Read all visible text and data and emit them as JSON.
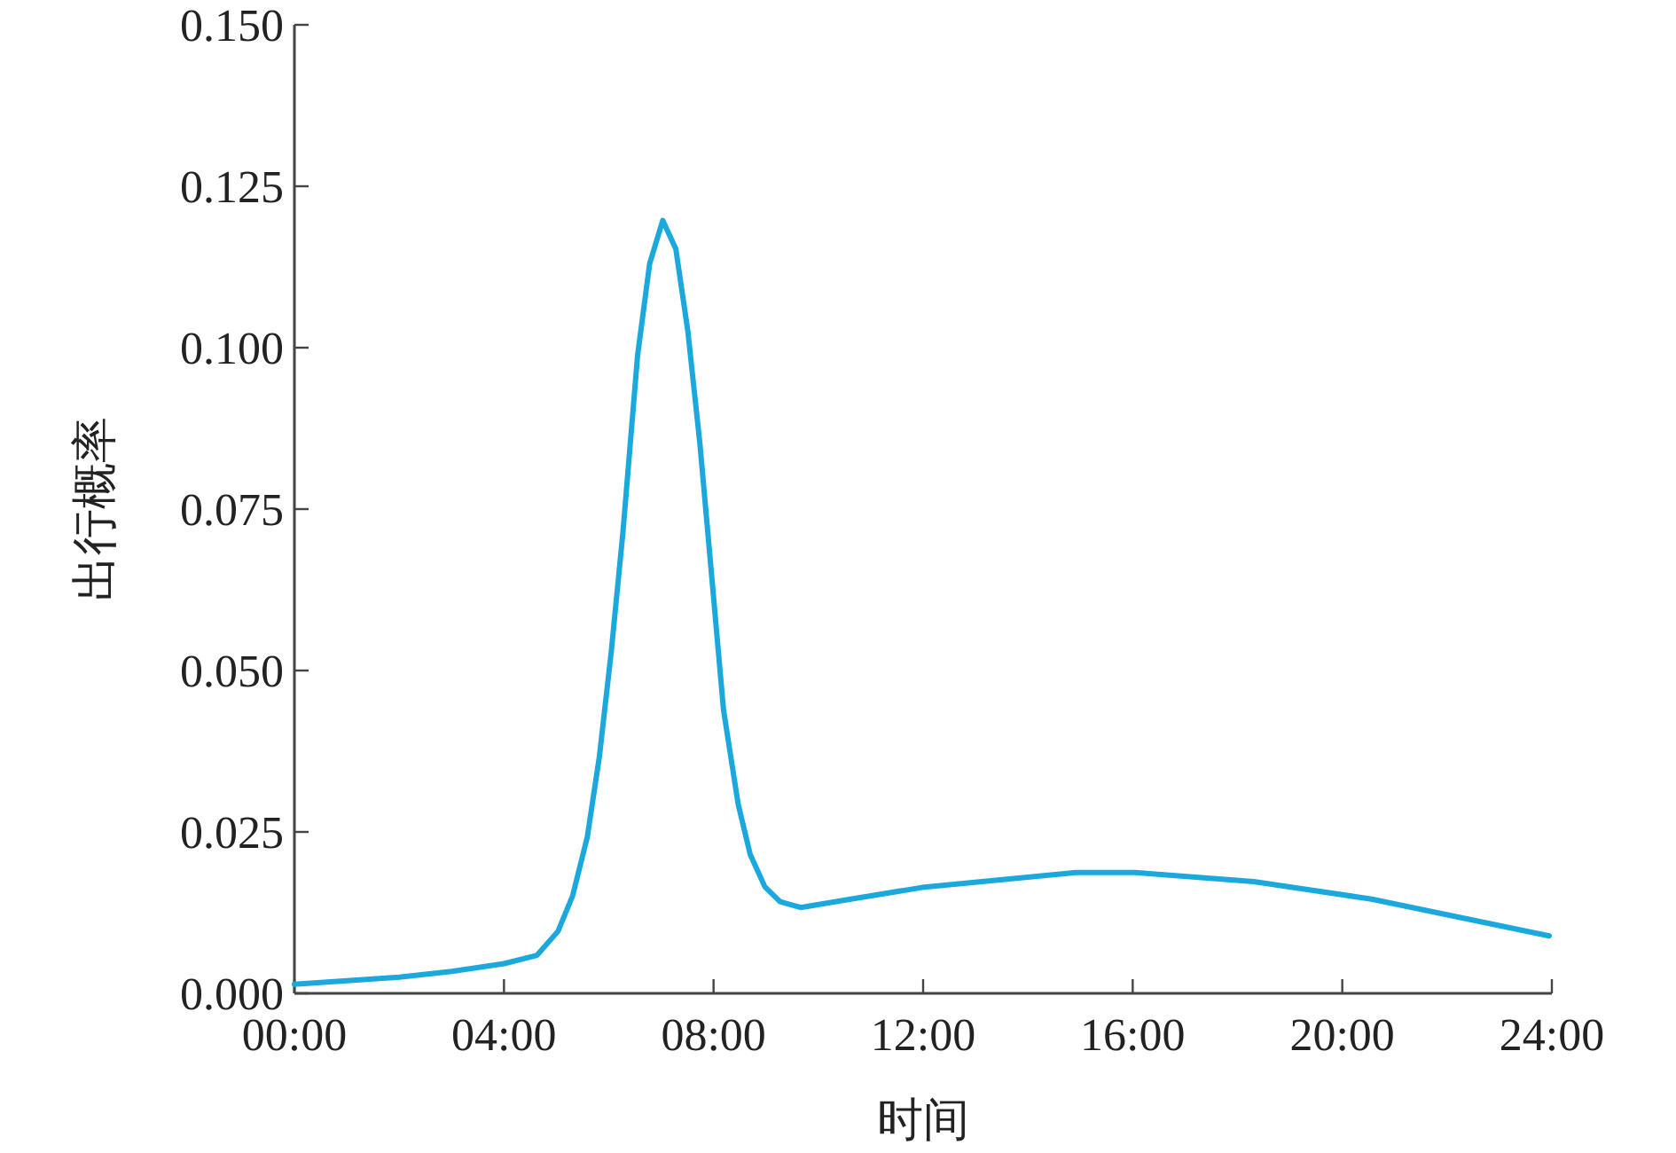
{
  "chart_data": {
    "type": "line",
    "xlabel": "时间",
    "ylabel": "出行概率",
    "color": "#1ba8dc",
    "x": [
      0,
      2,
      3,
      4.0,
      4.63,
      5.03,
      5.31,
      5.59,
      5.82,
      6.05,
      6.27,
      6.55,
      6.78,
      7.03,
      7.28,
      7.51,
      7.74,
      7.97,
      8.19,
      8.47,
      8.7,
      8.98,
      9.27,
      9.66,
      10.62,
      11.98,
      14.92,
      16.04,
      18.31,
      20.56,
      23.95
    ],
    "values": [
      0.0014,
      0.0025,
      0.0034,
      0.0046,
      0.0059,
      0.0096,
      0.0151,
      0.0242,
      0.0366,
      0.0531,
      0.0714,
      0.0988,
      0.113,
      0.1197,
      0.1153,
      0.1025,
      0.0851,
      0.0641,
      0.0439,
      0.0293,
      0.0215,
      0.0165,
      0.0142,
      0.0133,
      0.0146,
      0.0164,
      0.0187,
      0.0187,
      0.0173,
      0.0146,
      0.0089
    ],
    "xlim": [
      0,
      24
    ],
    "ylim": [
      0,
      0.15
    ],
    "xticks": [
      {
        "value": 0,
        "label": "00:00"
      },
      {
        "value": 4,
        "label": "04:00"
      },
      {
        "value": 8,
        "label": "08:00"
      },
      {
        "value": 12,
        "label": "12:00"
      },
      {
        "value": 16,
        "label": "16:00"
      },
      {
        "value": 20,
        "label": "20:00"
      },
      {
        "value": 24,
        "label": "24:00"
      }
    ],
    "yticks": [
      {
        "value": 0,
        "label": "0.000"
      },
      {
        "value": 0.025,
        "label": "0.025"
      },
      {
        "value": 0.05,
        "label": "0.050"
      },
      {
        "value": 0.075,
        "label": "0.075"
      },
      {
        "value": 0.1,
        "label": "0.100"
      },
      {
        "value": 0.125,
        "label": "0.125"
      },
      {
        "value": 0.15,
        "label": "0.150"
      }
    ]
  }
}
